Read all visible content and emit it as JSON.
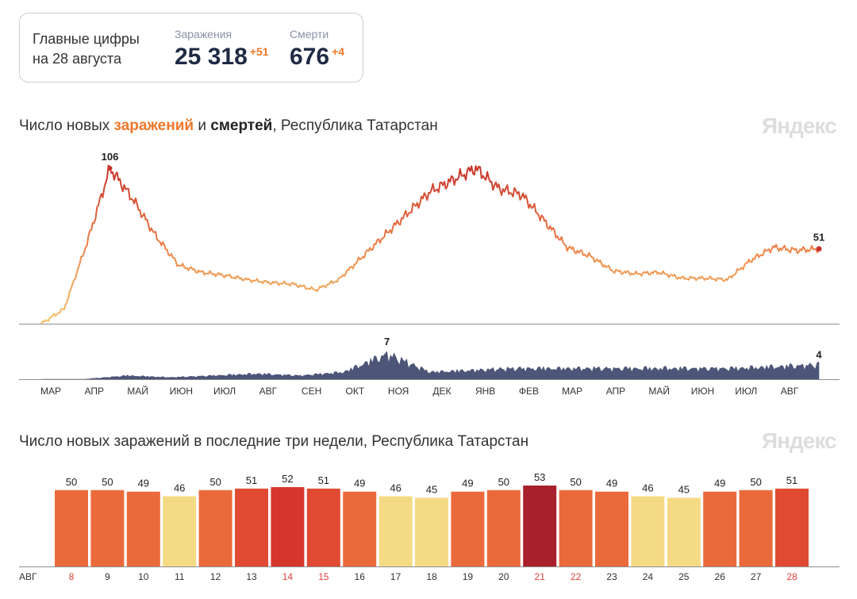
{
  "summary": {
    "title_line1": "Главные цифры",
    "title_line2": "на 28 августа",
    "infections_label": "Заражения",
    "infections_value": "25 318",
    "infections_delta": "+51",
    "deaths_label": "Смерти",
    "deaths_value": "676",
    "deaths_delta": "+4"
  },
  "chart1": {
    "title_part1": "Число новых ",
    "title_infections": "заражений",
    "title_part2": " и ",
    "title_deaths": "смертей",
    "title_part3": ", Республика Татарстан",
    "logo": "Яндекс"
  },
  "chart2": {
    "title": "Число новых заражений в последние три недели, Республика Татарстан",
    "logo": "Яндекс",
    "month_label": "АВГ"
  },
  "colors": {
    "low": "#f0c36a",
    "mid": "#f0874a",
    "high": "#c7332b",
    "deaths": "#4d5578",
    "accent": "#f0772a",
    "weekend_label": "#e0413a"
  },
  "chart_data": [
    {
      "type": "line",
      "series": [
        {
          "name": "заражений",
          "points": [
            [
              "Мар",
              0
            ],
            [
              "Апр",
              10
            ],
            [
              "Апр",
              55
            ],
            [
              "Май",
              106
            ],
            [
              "Май",
              85
            ],
            [
              "Июн",
              60
            ],
            [
              "Июн",
              40
            ],
            [
              "Июл",
              35
            ],
            [
              "Июл",
              33
            ],
            [
              "Авг",
              30
            ],
            [
              "Авг",
              28
            ],
            [
              "Сен",
              27
            ],
            [
              "Сен",
              23
            ],
            [
              "Окт",
              30
            ],
            [
              "Окт",
              45
            ],
            [
              "Ноя",
              60
            ],
            [
              "Ноя",
              75
            ],
            [
              "Дек",
              90
            ],
            [
              "Дек",
              98
            ],
            [
              "Янв",
              106
            ],
            [
              "Янв",
              92
            ],
            [
              "Фев",
              88
            ],
            [
              "Фев",
              70
            ],
            [
              "Мар",
              52
            ],
            [
              "Мар",
              46
            ],
            [
              "Апр",
              36
            ],
            [
              "Апр",
              34
            ],
            [
              "Май",
              35
            ],
            [
              "Май",
              31
            ],
            [
              "Июн",
              31
            ],
            [
              "Июн",
              30
            ],
            [
              "Июл",
              43
            ],
            [
              "Июл",
              52
            ],
            [
              "Авг",
              50
            ],
            [
              "Авг",
              51
            ]
          ],
          "peak_label": "106",
          "last_label": "51"
        },
        {
          "name": "смертей",
          "points": [
            [
              "Мар",
              0
            ],
            [
              "Апр",
              0
            ],
            [
              "Май",
              1
            ],
            [
              "Июн",
              0.5
            ],
            [
              "Июл",
              1
            ],
            [
              "Авг",
              1.5
            ],
            [
              "Сен",
              1
            ],
            [
              "Окт",
              2
            ],
            [
              "Окт",
              7
            ],
            [
              "Ноя",
              2
            ],
            [
              "Дек",
              2.5
            ],
            [
              "Янв",
              3
            ],
            [
              "Фев",
              3
            ],
            [
              "Мар",
              3
            ],
            [
              "Апр",
              3
            ],
            [
              "Май",
              3
            ],
            [
              "Июн",
              3
            ],
            [
              "Июл",
              3.5
            ],
            [
              "Авг",
              4
            ]
          ],
          "peak_label": "7",
          "last_label": "4"
        }
      ],
      "x_tick_labels": [
        "МАР",
        "АПР",
        "МАЙ",
        "ИЮН",
        "ИЮЛ",
        "АВГ",
        "СЕН",
        "ОКТ",
        "НОЯ",
        "ДЕК",
        "ЯНВ",
        "ФЕВ",
        "МАР",
        "АПР",
        "МАЙ",
        "ИЮН",
        "ИЮЛ",
        "АВГ"
      ]
    },
    {
      "type": "bar",
      "categories": [
        "8",
        "9",
        "10",
        "11",
        "12",
        "13",
        "14",
        "15",
        "16",
        "17",
        "18",
        "19",
        "20",
        "21",
        "22",
        "23",
        "24",
        "25",
        "26",
        "27",
        "28"
      ],
      "values": [
        50,
        50,
        49,
        46,
        50,
        51,
        52,
        51,
        49,
        46,
        45,
        49,
        50,
        53,
        50,
        49,
        46,
        45,
        49,
        50,
        51
      ],
      "weekend_days": [
        "8",
        "14",
        "15",
        "21",
        "22",
        "28"
      ]
    }
  ]
}
